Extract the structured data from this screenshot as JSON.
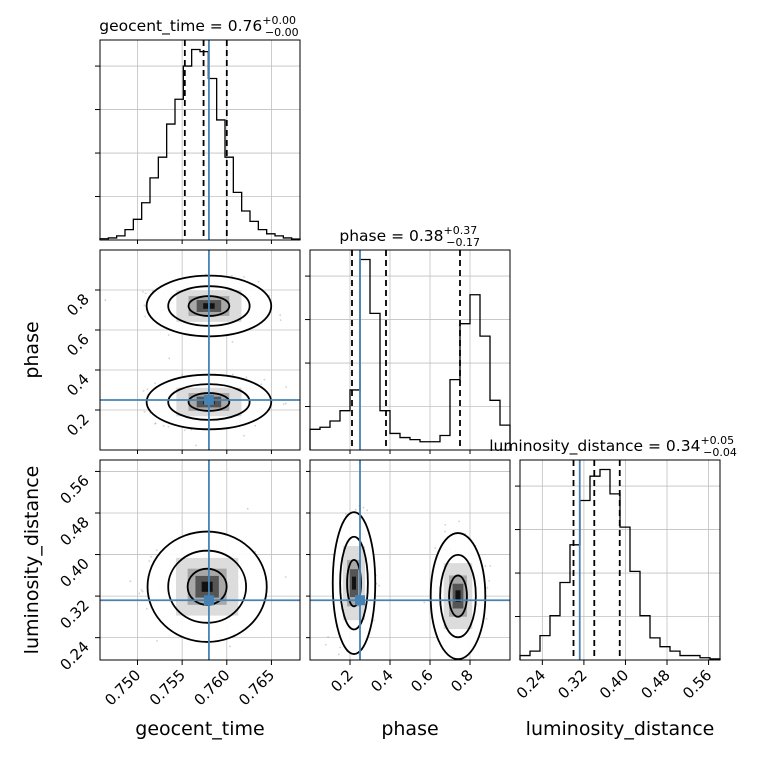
{
  "chart_data": {
    "type": "corner",
    "colors": {
      "truth": "#4682b4",
      "line": "#000000",
      "grid": "#c0c0c0",
      "samples": "#9a9a9a"
    },
    "truth": {
      "geocent_time": 0.758,
      "phase": 0.25,
      "luminosity_distance": 0.312
    },
    "params": [
      {
        "name": "geocent_time",
        "label": "geocent_time",
        "title_main": "geocent_time = 0.76",
        "title_plus": "+0.00",
        "title_minus": "−0.00",
        "range": [
          0.7458,
          0.7682
        ],
        "ticks": [
          0.75,
          0.755,
          0.76,
          0.765
        ],
        "tick_labels": [
          "0.750",
          "0.755",
          "0.760",
          "0.765"
        ],
        "quantiles": [
          0.7553,
          0.7574,
          0.76
        ],
        "hist": [
          0.6,
          1,
          2,
          5,
          10,
          18,
          30,
          40,
          56,
          68,
          84,
          92,
          91,
          78,
          58,
          40,
          23,
          14,
          9,
          5,
          3,
          2,
          1,
          0.5
        ]
      },
      {
        "name": "phase",
        "label": "phase",
        "title_main": "phase = 0.38",
        "title_plus": "+0.37",
        "title_minus": "−0.17",
        "range": [
          0.0,
          1.0
        ],
        "ticks": [
          0.2,
          0.4,
          0.6,
          0.8
        ],
        "tick_labels": [
          "0.2",
          "0.4",
          "0.6",
          "0.8"
        ],
        "quantiles": [
          0.21,
          0.38,
          0.75
        ],
        "hist": [
          10,
          11,
          14,
          19,
          29,
          92,
          66,
          19,
          8,
          6,
          5,
          4,
          4,
          7,
          34,
          61,
          75,
          55,
          24,
          12
        ]
      },
      {
        "name": "luminosity_distance",
        "label": "luminosity_distance",
        "title_main": "luminosity_distance = 0.34",
        "title_plus": "+0.05",
        "title_minus": "−0.04",
        "range": [
          0.197,
          0.582
        ],
        "ticks": [
          0.24,
          0.32,
          0.4,
          0.48,
          0.56
        ],
        "tick_labels": [
          "0.24",
          "0.32",
          "0.40",
          "0.48",
          "0.56"
        ],
        "quantiles": [
          0.3,
          0.34,
          0.389
        ],
        "hist": [
          2,
          4,
          11,
          20,
          35,
          52,
          72,
          83,
          86,
          75,
          60,
          40,
          20,
          10,
          6,
          4,
          2,
          2,
          1,
          0.5
        ]
      }
    ],
    "contours_2d": [
      {
        "x": "geocent_time",
        "y": "phase",
        "blobs": [
          {
            "cx": 0.758,
            "cy": 0.72,
            "sx": 0.0023,
            "sy": 0.05
          },
          {
            "cx": 0.758,
            "cy": 0.24,
            "sx": 0.0023,
            "sy": 0.045
          }
        ]
      },
      {
        "x": "geocent_time",
        "y": "luminosity_distance",
        "blobs": [
          {
            "cx": 0.7578,
            "cy": 0.338,
            "sx": 0.0022,
            "sy": 0.035
          }
        ]
      },
      {
        "x": "phase",
        "y": "luminosity_distance",
        "blobs": [
          {
            "cx": 0.22,
            "cy": 0.345,
            "sx": 0.035,
            "sy": 0.045
          },
          {
            "cx": 0.74,
            "cy": 0.32,
            "sx": 0.045,
            "sy": 0.04
          }
        ]
      }
    ],
    "contour_levels": [
      0.39,
      0.86,
      0.99
    ]
  }
}
